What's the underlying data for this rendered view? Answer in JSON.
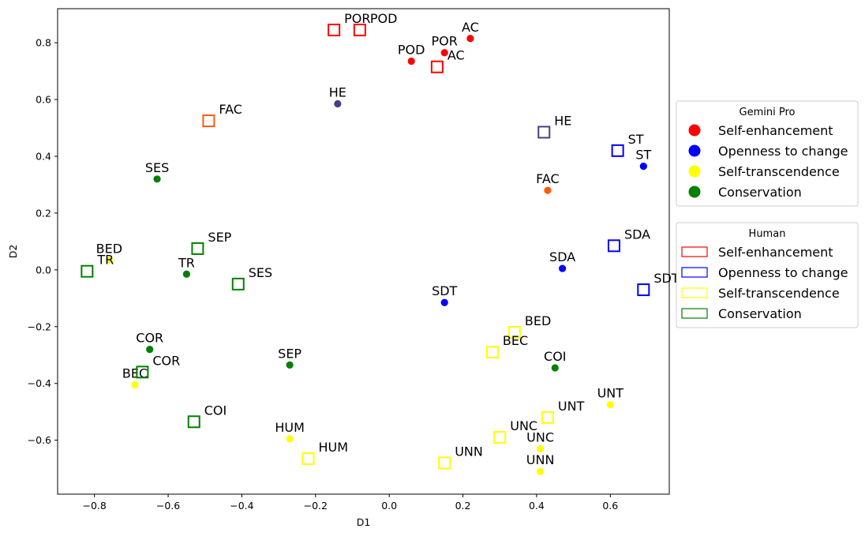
{
  "chart_data": {
    "type": "scatter",
    "xlabel": "D1",
    "ylabel": "D2",
    "xlim": [
      -0.9,
      0.76
    ],
    "ylim": [
      -0.79,
      0.92
    ],
    "xticks": [
      -0.8,
      -0.6,
      -0.4,
      -0.2,
      0.0,
      0.2,
      0.4,
      0.6
    ],
    "xtick_labels": [
      "−0.8",
      "−0.6",
      "−0.4",
      "−0.2",
      "0.0",
      "0.2",
      "0.4",
      "0.6"
    ],
    "yticks": [
      -0.6,
      -0.4,
      -0.2,
      0.0,
      0.2,
      0.4,
      0.6,
      0.8
    ],
    "ytick_labels": [
      "−0.6",
      "−0.4",
      "−0.2",
      "0.0",
      "0.2",
      "0.4",
      "0.6",
      "0.8"
    ],
    "grid": false,
    "colors": {
      "Self-enhancement": "#ff0000",
      "Openness to change": "#0000ff",
      "Self-transcendence": "#ffff00",
      "Conservation": "#008000",
      "HE": "#483d8b",
      "FAC": "#ff5a0a"
    },
    "series": [
      {
        "name": "Gemini Pro",
        "marker": "circle",
        "points": [
          {
            "label": "AC",
            "x": 0.22,
            "y": 0.815,
            "group": "Self-enhancement",
            "color": "#ff0000"
          },
          {
            "label": "POR",
            "x": 0.15,
            "y": 0.765,
            "group": "Self-enhancement",
            "color": "#ff0000"
          },
          {
            "label": "POD",
            "x": 0.06,
            "y": 0.735,
            "group": "Self-enhancement",
            "color": "#ff0000"
          },
          {
            "label": "HE",
            "x": -0.14,
            "y": 0.585,
            "group": "HE",
            "color": "#483d8b"
          },
          {
            "label": "FAC",
            "x": 0.43,
            "y": 0.28,
            "group": "FAC",
            "color": "#ff5a0a"
          },
          {
            "label": "ST",
            "x": 0.69,
            "y": 0.365,
            "group": "Openness to change",
            "color": "#0000ff"
          },
          {
            "label": "SDA",
            "x": 0.47,
            "y": 0.005,
            "group": "Openness to change",
            "color": "#0000ff"
          },
          {
            "label": "SDT",
            "x": 0.15,
            "y": -0.115,
            "group": "Openness to change",
            "color": "#0000ff"
          },
          {
            "label": "SES",
            "x": -0.63,
            "y": 0.32,
            "group": "Conservation",
            "color": "#008000"
          },
          {
            "label": "TR",
            "x": -0.55,
            "y": -0.015,
            "group": "Conservation",
            "color": "#008000"
          },
          {
            "label": "COR",
            "x": -0.65,
            "y": -0.28,
            "group": "Conservation",
            "color": "#008000"
          },
          {
            "label": "SEP",
            "x": -0.27,
            "y": -0.335,
            "group": "Conservation",
            "color": "#008000"
          },
          {
            "label": "COI",
            "x": 0.45,
            "y": -0.345,
            "group": "Conservation",
            "color": "#008000"
          },
          {
            "label": "BED",
            "x": -0.76,
            "y": 0.035,
            "group": "Self-transcendence",
            "color": "#ffff00"
          },
          {
            "label": "BEC",
            "x": -0.69,
            "y": -0.405,
            "group": "Self-transcendence",
            "color": "#ffff00"
          },
          {
            "label": "HUM",
            "x": -0.27,
            "y": -0.595,
            "group": "Self-transcendence",
            "color": "#ffff00"
          },
          {
            "label": "UNT",
            "x": 0.6,
            "y": -0.475,
            "group": "Self-transcendence",
            "color": "#ffff00"
          },
          {
            "label": "UNC",
            "x": 0.41,
            "y": -0.63,
            "group": "Self-transcendence",
            "color": "#ffff00"
          },
          {
            "label": "UNN",
            "x": 0.41,
            "y": -0.71,
            "group": "Self-transcendence",
            "color": "#ffff00"
          }
        ]
      },
      {
        "name": "Human",
        "marker": "open-square",
        "points": [
          {
            "label": "POR",
            "x": -0.15,
            "y": 0.845,
            "group": "Self-enhancement",
            "color": "#ff0000"
          },
          {
            "label": "POD",
            "x": -0.08,
            "y": 0.845,
            "group": "Self-enhancement",
            "color": "#ff0000"
          },
          {
            "label": "AC",
            "x": 0.13,
            "y": 0.715,
            "group": "Self-enhancement",
            "color": "#ff0000"
          },
          {
            "label": "FAC",
            "x": -0.49,
            "y": 0.525,
            "group": "FAC",
            "color": "#ff5a0a"
          },
          {
            "label": "HE",
            "x": 0.42,
            "y": 0.485,
            "group": "HE",
            "color": "#483d8b"
          },
          {
            "label": "ST",
            "x": 0.62,
            "y": 0.42,
            "group": "Openness to change",
            "color": "#0000ff"
          },
          {
            "label": "SDA",
            "x": 0.61,
            "y": 0.085,
            "group": "Openness to change",
            "color": "#0000ff"
          },
          {
            "label": "SDT",
            "x": 0.69,
            "y": -0.07,
            "group": "Openness to change",
            "color": "#0000ff"
          },
          {
            "label": "SEP",
            "x": -0.52,
            "y": 0.075,
            "group": "Conservation",
            "color": "#008000"
          },
          {
            "label": "TR",
            "x": -0.82,
            "y": -0.005,
            "group": "Conservation",
            "color": "#008000"
          },
          {
            "label": "SES",
            "x": -0.41,
            "y": -0.05,
            "group": "Conservation",
            "color": "#008000"
          },
          {
            "label": "COR",
            "x": -0.67,
            "y": -0.36,
            "group": "Conservation",
            "color": "#008000"
          },
          {
            "label": "COI",
            "x": -0.53,
            "y": -0.535,
            "group": "Conservation",
            "color": "#008000"
          },
          {
            "label": "BED",
            "x": 0.34,
            "y": -0.22,
            "group": "Self-transcendence",
            "color": "#ffff00"
          },
          {
            "label": "BEC",
            "x": 0.28,
            "y": -0.29,
            "group": "Self-transcendence",
            "color": "#ffff00"
          },
          {
            "label": "UNT",
            "x": 0.43,
            "y": -0.52,
            "group": "Self-transcendence",
            "color": "#ffff00"
          },
          {
            "label": "UNC",
            "x": 0.3,
            "y": -0.59,
            "group": "Self-transcendence",
            "color": "#ffff00"
          },
          {
            "label": "HUM",
            "x": -0.22,
            "y": -0.665,
            "group": "Self-transcendence",
            "color": "#ffff00"
          },
          {
            "label": "UNN",
            "x": 0.15,
            "y": -0.68,
            "group": "Self-transcendence",
            "color": "#ffff00"
          }
        ]
      }
    ],
    "legends": [
      {
        "title": "Gemini Pro",
        "placement": "right-upper",
        "marker": "circle",
        "entries": [
          {
            "label": "Self-enhancement",
            "color": "#ff0000"
          },
          {
            "label": "Openness to change",
            "color": "#0000ff"
          },
          {
            "label": "Self-transcendence",
            "color": "#ffff00"
          },
          {
            "label": "Conservation",
            "color": "#008000"
          }
        ]
      },
      {
        "title": "Human",
        "placement": "right-middle",
        "marker": "open-rect",
        "entries": [
          {
            "label": "Self-enhancement",
            "color": "#ff0000"
          },
          {
            "label": "Openness to change",
            "color": "#0000ff"
          },
          {
            "label": "Self-transcendence",
            "color": "#ffff00"
          },
          {
            "label": "Conservation",
            "color": "#008000"
          }
        ]
      }
    ]
  }
}
